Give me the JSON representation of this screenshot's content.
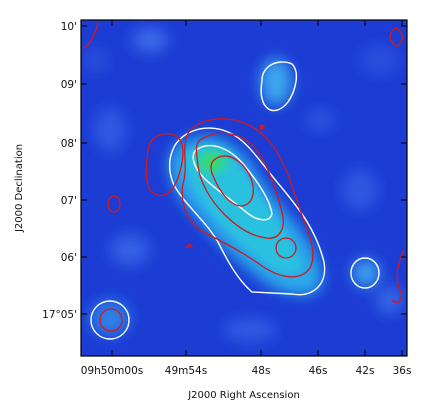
{
  "figure": {
    "xlabel": "J2000 Right Ascension",
    "ylabel": "J2000 Declination",
    "x_ticks": [
      "09h50m00s",
      "49m54s",
      "48s",
      "46s",
      "42s",
      "36s"
    ],
    "y_ticks": [
      "10'",
      "09'",
      "08'",
      "07'",
      "06'",
      "17°05'"
    ],
    "colors": {
      "background": "#1e3fd6",
      "emission_core": "#29d06a",
      "white_contour": "#ffffff",
      "red_contour": "#d01818",
      "frame": "#000000"
    }
  }
}
